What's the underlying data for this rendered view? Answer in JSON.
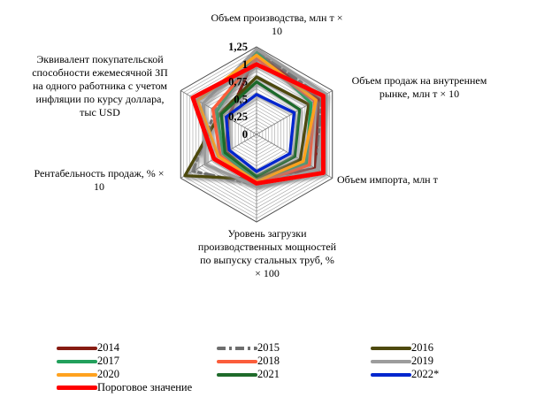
{
  "chart_data": {
    "type": "radar",
    "title": "",
    "scale_max": 1.25,
    "minor_grid_step": 0.05,
    "grid": true,
    "legend_position": "bottom",
    "ticks": [
      {
        "label": "0",
        "value": 0
      },
      {
        "label": "0,25",
        "value": 0.25
      },
      {
        "label": "0,5",
        "value": 0.5
      },
      {
        "label": "0,75",
        "value": 0.75
      },
      {
        "label": "1",
        "value": 1
      },
      {
        "label": "1,25",
        "value": 1.25
      }
    ],
    "axes": [
      "Объем производства, млн т ×\n10",
      "Объем продаж на внутреннем\nрынке, млн т × 10",
      "Объем импорта, млн т",
      "Уровень загрузки\nпроизводственных мощностей\nпо выпуску стальных труб, %\n× 100",
      "Рентабельность продаж, % ×\n10",
      "Эквивалент покупательской\nспособности ежемесячной ЗП\nна одного работника с учетом\nинфляции по курсу доллара,\nтыс USD"
    ],
    "series": [
      {
        "name": "2014",
        "color": "#871c12",
        "dash": null,
        "width": 3.4,
        "values": [
          1.17,
          1.02,
          0.97,
          0.63,
          0.5,
          0.47
        ]
      },
      {
        "name": "2015",
        "color": "#6e6e6e",
        "dash": "10 5 2.5 5",
        "width": 3.4,
        "values": [
          1.2,
          1.07,
          1.0,
          0.72,
          1.05,
          0.68
        ]
      },
      {
        "name": "2016",
        "color": "#4e4a0e",
        "dash": null,
        "width": 3.4,
        "values": [
          0.82,
          0.86,
          0.72,
          0.64,
          1.18,
          0.6
        ]
      },
      {
        "name": "2017",
        "color": "#22a05c",
        "dash": null,
        "width": 3.4,
        "values": [
          1.17,
          0.9,
          0.82,
          0.66,
          0.55,
          0.66
        ]
      },
      {
        "name": "2018",
        "color": "#fb5d3b",
        "dash": null,
        "width": 3.4,
        "values": [
          1.09,
          0.96,
          0.87,
          0.7,
          0.6,
          0.72
        ]
      },
      {
        "name": "2019",
        "color": "#9c9c9c",
        "dash": null,
        "width": 3.4,
        "values": [
          1.22,
          1.15,
          1.0,
          0.74,
          0.85,
          0.88
        ]
      },
      {
        "name": "2020",
        "color": "#ffa21f",
        "dash": null,
        "width": 3.4,
        "values": [
          1.13,
          0.98,
          0.77,
          0.67,
          0.63,
          0.97
        ]
      },
      {
        "name": "2021",
        "color": "#1f6b2b",
        "dash": null,
        "width": 3.4,
        "values": [
          0.75,
          0.71,
          0.63,
          0.6,
          0.52,
          0.58
        ]
      },
      {
        "name": "2022*",
        "color": "#0026ce",
        "dash": null,
        "width": 3.4,
        "values": [
          0.57,
          0.62,
          0.55,
          0.53,
          0.45,
          0.5
        ]
      },
      {
        "name": "Пороговое значение",
        "color": "#ff0000",
        "dash": null,
        "width": 5.0,
        "values": [
          1.0,
          1.1,
          1.1,
          0.7,
          0.7,
          1.05
        ]
      }
    ],
    "colors": {
      "grid_minor": "#9a9a9a",
      "grid_outer": "#4a4a4a",
      "spoke": "#7a7a7a",
      "shadow": "#8a8a8a"
    }
  }
}
